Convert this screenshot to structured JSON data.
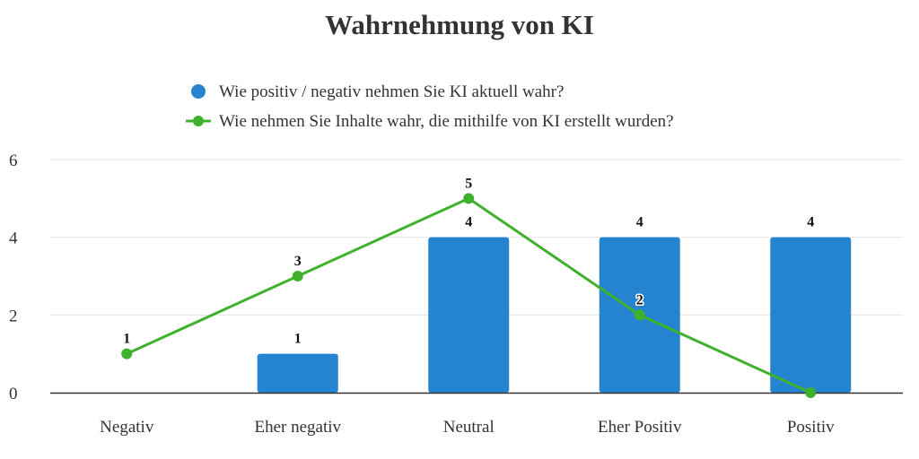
{
  "chart_data": {
    "type": "bar",
    "title": "Wahrnehmung von KI",
    "categories": [
      "Negativ",
      "Eher negativ",
      "Neutral",
      "Eher Positiv",
      "Positiv"
    ],
    "series": [
      {
        "name": "Wie positiv / negativ nehmen Sie KI aktuell wahr?",
        "type": "bar",
        "color": "#2484d0",
        "values": [
          0,
          1,
          4,
          4,
          4
        ],
        "labels": [
          "",
          "1",
          "4",
          "4",
          "4"
        ]
      },
      {
        "name": "Wie nehmen Sie Inhalte wahr, die mithilfe von KI erstellt wurden?",
        "type": "line",
        "color": "#3fb12d",
        "values": [
          1,
          3,
          5,
          2,
          0
        ],
        "labels": [
          "1",
          "3",
          "5",
          "2",
          ""
        ]
      }
    ],
    "ylim": [
      0,
      6
    ],
    "yticks": [
      "0",
      "2",
      "4",
      "6"
    ],
    "xlabel": "",
    "ylabel": "",
    "grid": true,
    "legend_position": "top"
  }
}
